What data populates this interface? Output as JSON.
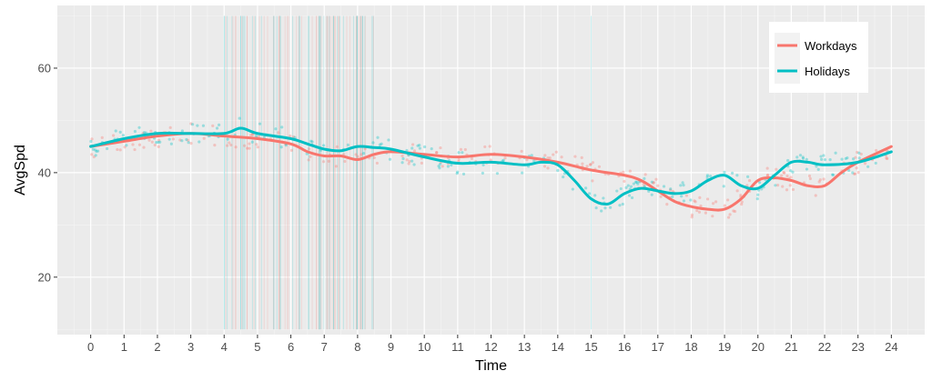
{
  "chart_data": {
    "type": "line",
    "xlabel": "Time",
    "ylabel": "AvgSpd",
    "xlim": [
      -1,
      25
    ],
    "ylim": [
      9,
      72
    ],
    "x_ticks": [
      0,
      1,
      2,
      3,
      4,
      5,
      6,
      7,
      8,
      9,
      10,
      11,
      12,
      13,
      14,
      15,
      16,
      17,
      18,
      19,
      20,
      21,
      22,
      23,
      24
    ],
    "x_tick_labels": [
      "0",
      "1",
      "2",
      "3",
      "4",
      "5",
      "6",
      "7",
      "8",
      "9",
      "10",
      "11",
      "12",
      "13",
      "14",
      "15",
      "16",
      "17",
      "18",
      "19",
      "20",
      "21",
      "22",
      "23",
      "24"
    ],
    "y_ticks": [
      20,
      40,
      60
    ],
    "y_tick_labels": [
      "20",
      "40",
      "60"
    ],
    "grid": true,
    "legend_position": "top-right",
    "series": [
      {
        "name": "Workdays",
        "color": "#F8766D",
        "x": [
          0,
          1,
          2,
          3,
          4,
          5,
          6,
          6.5,
          7,
          7.5,
          8,
          8.5,
          9,
          10,
          11,
          12,
          13,
          14,
          15,
          16,
          16.5,
          17,
          17.5,
          18,
          18.5,
          19,
          19.5,
          20,
          20.5,
          21,
          21.5,
          22,
          22.5,
          23,
          24
        ],
        "y": [
          45,
          46,
          47,
          47.5,
          47,
          46.5,
          45.5,
          44,
          43.2,
          43.2,
          42.5,
          43.5,
          44,
          43.5,
          43,
          43.5,
          43,
          42,
          40.5,
          39.5,
          38.5,
          36.5,
          34.5,
          33.5,
          33,
          33,
          35,
          38.5,
          39,
          38.5,
          37.5,
          37.5,
          40,
          42,
          45
        ]
      },
      {
        "name": "Holidays",
        "color": "#00BFC4",
        "x": [
          0,
          1,
          2,
          3,
          4,
          4.5,
          5,
          6,
          6.5,
          7,
          7.5,
          8,
          8.5,
          9,
          10,
          11,
          12,
          13,
          13.5,
          14,
          14.5,
          15,
          15.5,
          16,
          16.5,
          17,
          17.5,
          18,
          18.5,
          19,
          19.5,
          20,
          20.5,
          21,
          21.5,
          22,
          23,
          24
        ],
        "y": [
          45,
          46.5,
          47.5,
          47.5,
          47.5,
          48.5,
          47.5,
          46.5,
          45.5,
          44.5,
          44.2,
          45,
          44.8,
          44.5,
          43,
          41.8,
          42,
          41.5,
          42,
          41.5,
          38.5,
          35,
          34,
          36,
          37,
          36.5,
          36,
          36.5,
          38.5,
          39.5,
          37.5,
          37,
          39.5,
          42,
          42,
          41.5,
          42,
          44
        ]
      }
    ],
    "annotations": [
      "dense vertical rug marks near x 4-8.5 and x 15",
      "semi-transparent scatter points around each smoothed series"
    ]
  }
}
